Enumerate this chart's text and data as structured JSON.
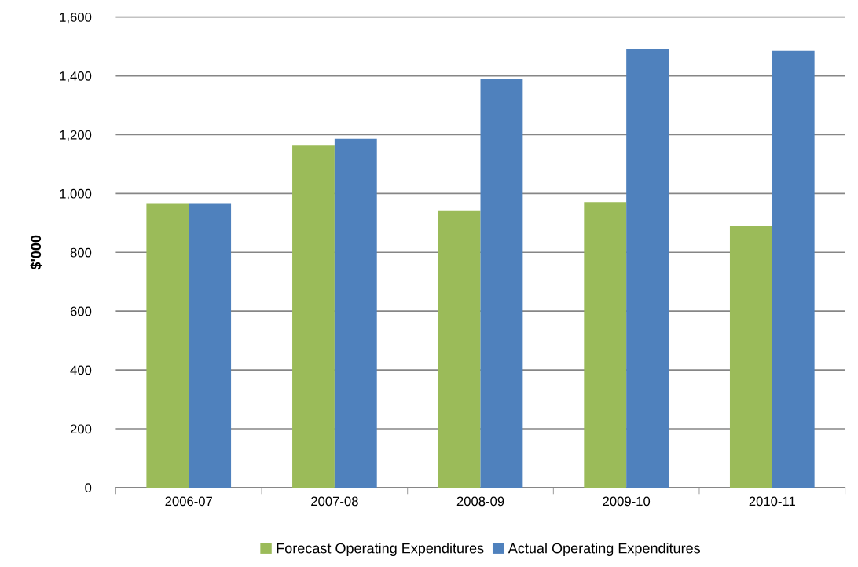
{
  "chart_data": {
    "type": "bar",
    "ylabel": "$'000",
    "categories": [
      "2006-07",
      "2007-08",
      "2008-09",
      "2009-10",
      "2010-11"
    ],
    "series": [
      {
        "name": "Forecast Operating Expenditures",
        "color": "#9bbb59",
        "values": [
          965,
          1163,
          940,
          971,
          889
        ]
      },
      {
        "name": "Actual Operating Expenditures",
        "color": "#4f81bd",
        "values": [
          965,
          1186,
          1391,
          1491,
          1485
        ]
      }
    ],
    "ylim": [
      0,
      1600
    ],
    "yticks": [
      {
        "value": 0,
        "label": "0"
      },
      {
        "value": 200,
        "label": "200"
      },
      {
        "value": 400,
        "label": "400"
      },
      {
        "value": 600,
        "label": "600"
      },
      {
        "value": 800,
        "label": "800"
      },
      {
        "value": 1000,
        "label": "1,000"
      },
      {
        "value": 1200,
        "label": "1,200"
      },
      {
        "value": 1400,
        "label": "1,400"
      },
      {
        "value": 1600,
        "label": "1,600"
      }
    ],
    "grid": "y",
    "legend": "bottom"
  }
}
